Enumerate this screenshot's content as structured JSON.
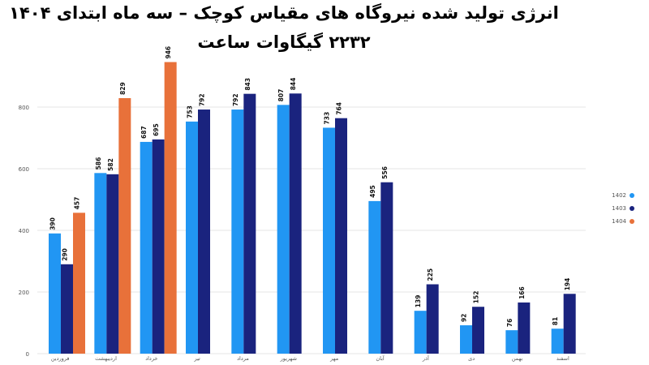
{
  "chart_data": {
    "type": "bar",
    "title": "انرژی تولید شده نیروگاه های مقیاس کوچک – سه ماه ابتدای ۱۴۰۴",
    "subtitle": "۲۲۳۲ گیگاوات ساعت",
    "categories": [
      "فروردین",
      "اردیبهشت",
      "خرداد",
      "تیر",
      "مرداد",
      "شهریور",
      "مهر",
      "آبان",
      "آذر",
      "دی",
      "بهمن",
      "اسفند"
    ],
    "series": [
      {
        "name": "1402",
        "color": "#2196f3",
        "values": [
          390,
          586,
          687,
          753,
          792,
          807,
          733,
          495,
          139,
          92,
          76,
          81
        ]
      },
      {
        "name": "1403",
        "color": "#1a237e",
        "values": [
          290,
          582,
          695,
          792,
          843,
          844,
          764,
          556,
          225,
          152,
          166,
          194
        ]
      },
      {
        "name": "1404",
        "color": "#e8713a",
        "values": [
          457,
          829,
          946,
          null,
          null,
          null,
          null,
          null,
          null,
          null,
          null,
          null
        ]
      }
    ],
    "ylim": [
      0,
      1000
    ],
    "yticks": [
      0,
      200,
      400,
      600,
      800
    ],
    "grid": true,
    "legend_position": "right",
    "data_labels": true
  }
}
